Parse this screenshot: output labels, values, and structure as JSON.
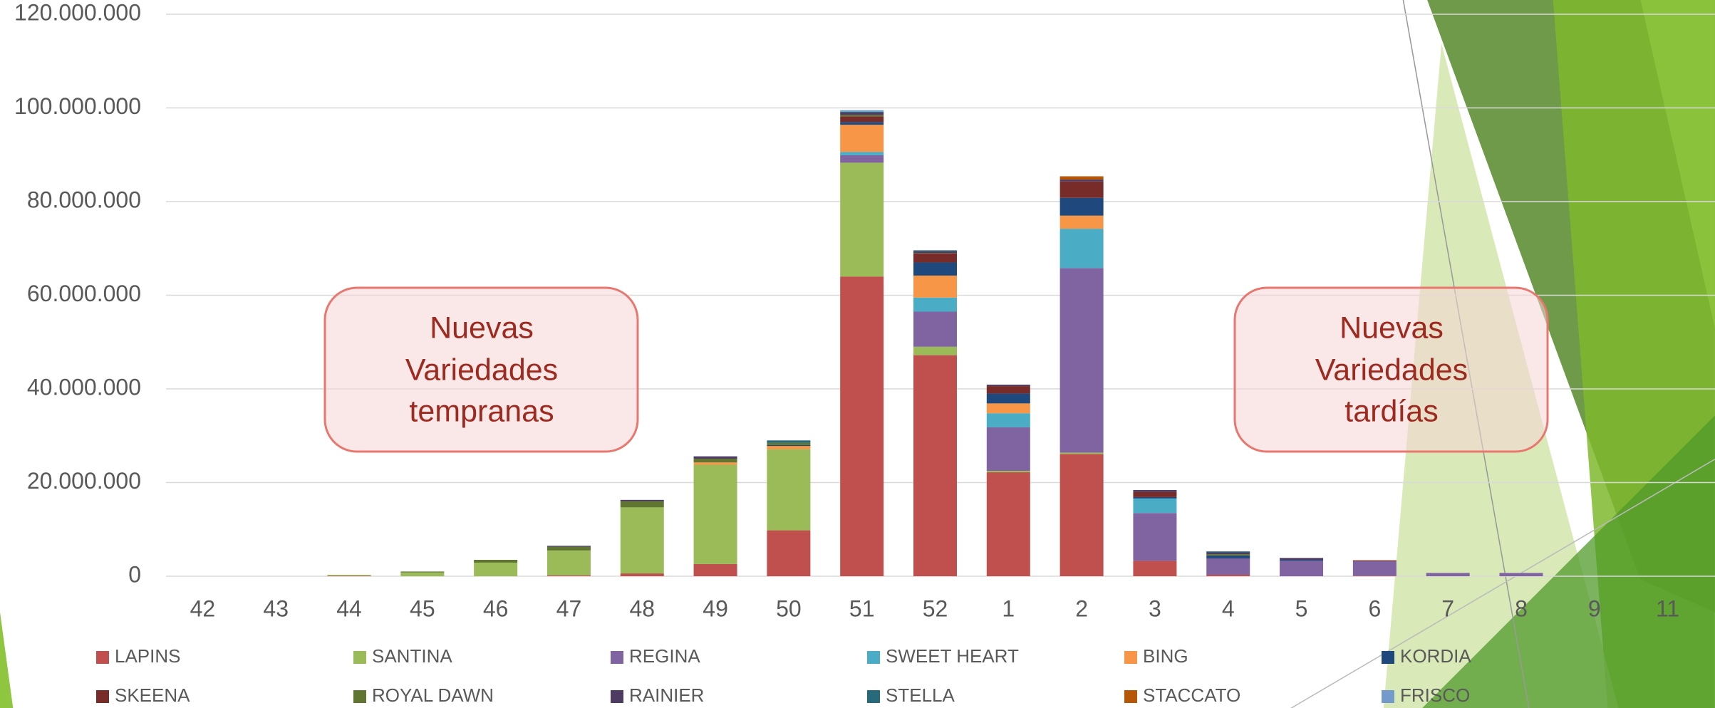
{
  "chart_data": {
    "type": "stacked-bar",
    "categories": [
      "42",
      "43",
      "44",
      "45",
      "46",
      "47",
      "48",
      "49",
      "50",
      "51",
      "52",
      "1",
      "2",
      "3",
      "4",
      "5",
      "6",
      "7",
      "8",
      "9",
      "11"
    ],
    "series": [
      {
        "name": "LAPINS",
        "color": "#c0504d",
        "values": [
          0,
          0,
          100000,
          0,
          0,
          200000,
          600000,
          2600000,
          9800000,
          64000000,
          47200000,
          22200000,
          26100000,
          3300000,
          300000,
          0,
          100000,
          0,
          0,
          0,
          0
        ]
      },
      {
        "name": "SANTINA",
        "color": "#9bbb59",
        "values": [
          0,
          0,
          200000,
          800000,
          2900000,
          5300000,
          14100000,
          21200000,
          17300000,
          24300000,
          1800000,
          300000,
          300000,
          0,
          0,
          0,
          0,
          0,
          0,
          0,
          0
        ]
      },
      {
        "name": "REGINA",
        "color": "#8064a2",
        "values": [
          0,
          0,
          0,
          0,
          0,
          0,
          0,
          0,
          0,
          1600000,
          7500000,
          9300000,
          39400000,
          10200000,
          3500000,
          3300000,
          3100000,
          700000,
          700000,
          0,
          0
        ]
      },
      {
        "name": "SWEET HEART",
        "color": "#4bacc6",
        "values": [
          0,
          0,
          0,
          0,
          0,
          0,
          0,
          0,
          0,
          700000,
          3000000,
          3000000,
          8400000,
          3100000,
          0,
          0,
          0,
          0,
          0,
          0,
          0
        ]
      },
      {
        "name": "BING",
        "color": "#f79646",
        "values": [
          0,
          0,
          0,
          0,
          0,
          0,
          0,
          500000,
          700000,
          5800000,
          4700000,
          2100000,
          2800000,
          0,
          0,
          0,
          0,
          0,
          0,
          0,
          0
        ]
      },
      {
        "name": "KORDIA",
        "color": "#1f497d",
        "values": [
          0,
          0,
          0,
          0,
          0,
          0,
          0,
          0,
          200000,
          600000,
          2800000,
          2100000,
          3800000,
          300000,
          600000,
          200000,
          0,
          0,
          0,
          0,
          0
        ]
      },
      {
        "name": "SKEENA",
        "color": "#772c2a",
        "values": [
          0,
          0,
          0,
          0,
          0,
          0,
          0,
          0,
          0,
          1200000,
          1900000,
          1600000,
          3500000,
          1100000,
          0,
          0,
          200000,
          0,
          0,
          0,
          0
        ]
      },
      {
        "name": "ROYAL DAWN",
        "color": "#5f7530",
        "values": [
          0,
          0,
          0,
          200000,
          600000,
          800000,
          1300000,
          800000,
          500000,
          300000,
          100000,
          0,
          0,
          0,
          300000,
          0,
          0,
          0,
          0,
          0,
          0
        ]
      },
      {
        "name": "RAINIER",
        "color": "#4d3b62",
        "values": [
          0,
          0,
          0,
          0,
          0,
          200000,
          300000,
          500000,
          0,
          500000,
          400000,
          300000,
          400000,
          400000,
          400000,
          400000,
          0,
          0,
          0,
          0,
          0
        ]
      },
      {
        "name": "STELLA",
        "color": "#276a7c",
        "values": [
          0,
          0,
          0,
          0,
          0,
          0,
          0,
          0,
          500000,
          200000,
          200000,
          0,
          0,
          0,
          200000,
          0,
          0,
          0,
          0,
          0,
          0
        ]
      },
      {
        "name": "STACCATO",
        "color": "#b65708",
        "values": [
          0,
          0,
          0,
          0,
          0,
          0,
          0,
          0,
          0,
          0,
          0,
          0,
          700000,
          0,
          0,
          0,
          0,
          0,
          0,
          0,
          0
        ]
      },
      {
        "name": "FRISCO",
        "color": "#729aca",
        "values": [
          0,
          0,
          0,
          0,
          0,
          0,
          0,
          0,
          0,
          300000,
          0,
          0,
          0,
          0,
          0,
          0,
          0,
          0,
          0,
          0,
          0
        ]
      }
    ],
    "ylim": [
      0,
      120000000
    ],
    "yticks": [
      0,
      {
        "value": 20000000,
        "label": "20.000.000"
      },
      {
        "value": 40000000,
        "label": "40.000.000"
      },
      {
        "value": 60000000,
        "label": "60.000.000"
      },
      {
        "value": 80000000,
        "label": "80.000.000"
      },
      {
        "value": 100000000,
        "label": "100.000.000"
      },
      {
        "value": 120000000,
        "label": "120.000.000"
      }
    ],
    "grid": true,
    "legend": "bottom",
    "annotations": [
      {
        "lines": [
          "Nuevas",
          "Variedades",
          "tempranas"
        ]
      },
      {
        "lines": [
          "Nuevas",
          "Variedades",
          "tardías"
        ]
      }
    ]
  }
}
